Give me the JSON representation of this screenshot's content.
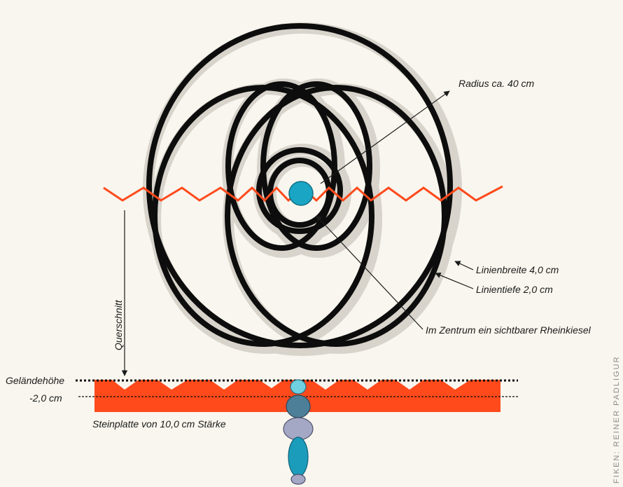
{
  "labels": {
    "radius": "Radius ca. 40 cm",
    "line_width": "Linienbreite 4,0 cm",
    "line_depth": "Linientiefe 2,0 cm",
    "center": "Im Zentrum ein sichtbarer Rheinkiesel",
    "cross_section": "Querschnitt",
    "ground_level": "Geländehöhe",
    "depth": "-2,0 cm",
    "stone_plate": "Steinplatte von 10,0 cm Stärke"
  },
  "credit": "FIKEN: REINER PADLIGUR",
  "colors": {
    "ring": "#0d0d0d",
    "ring_shadow": "#d8d4cc",
    "zigzag": "#ff4a1c",
    "plate": "#ff4a1c",
    "center_stone": "#1aa5c4"
  }
}
